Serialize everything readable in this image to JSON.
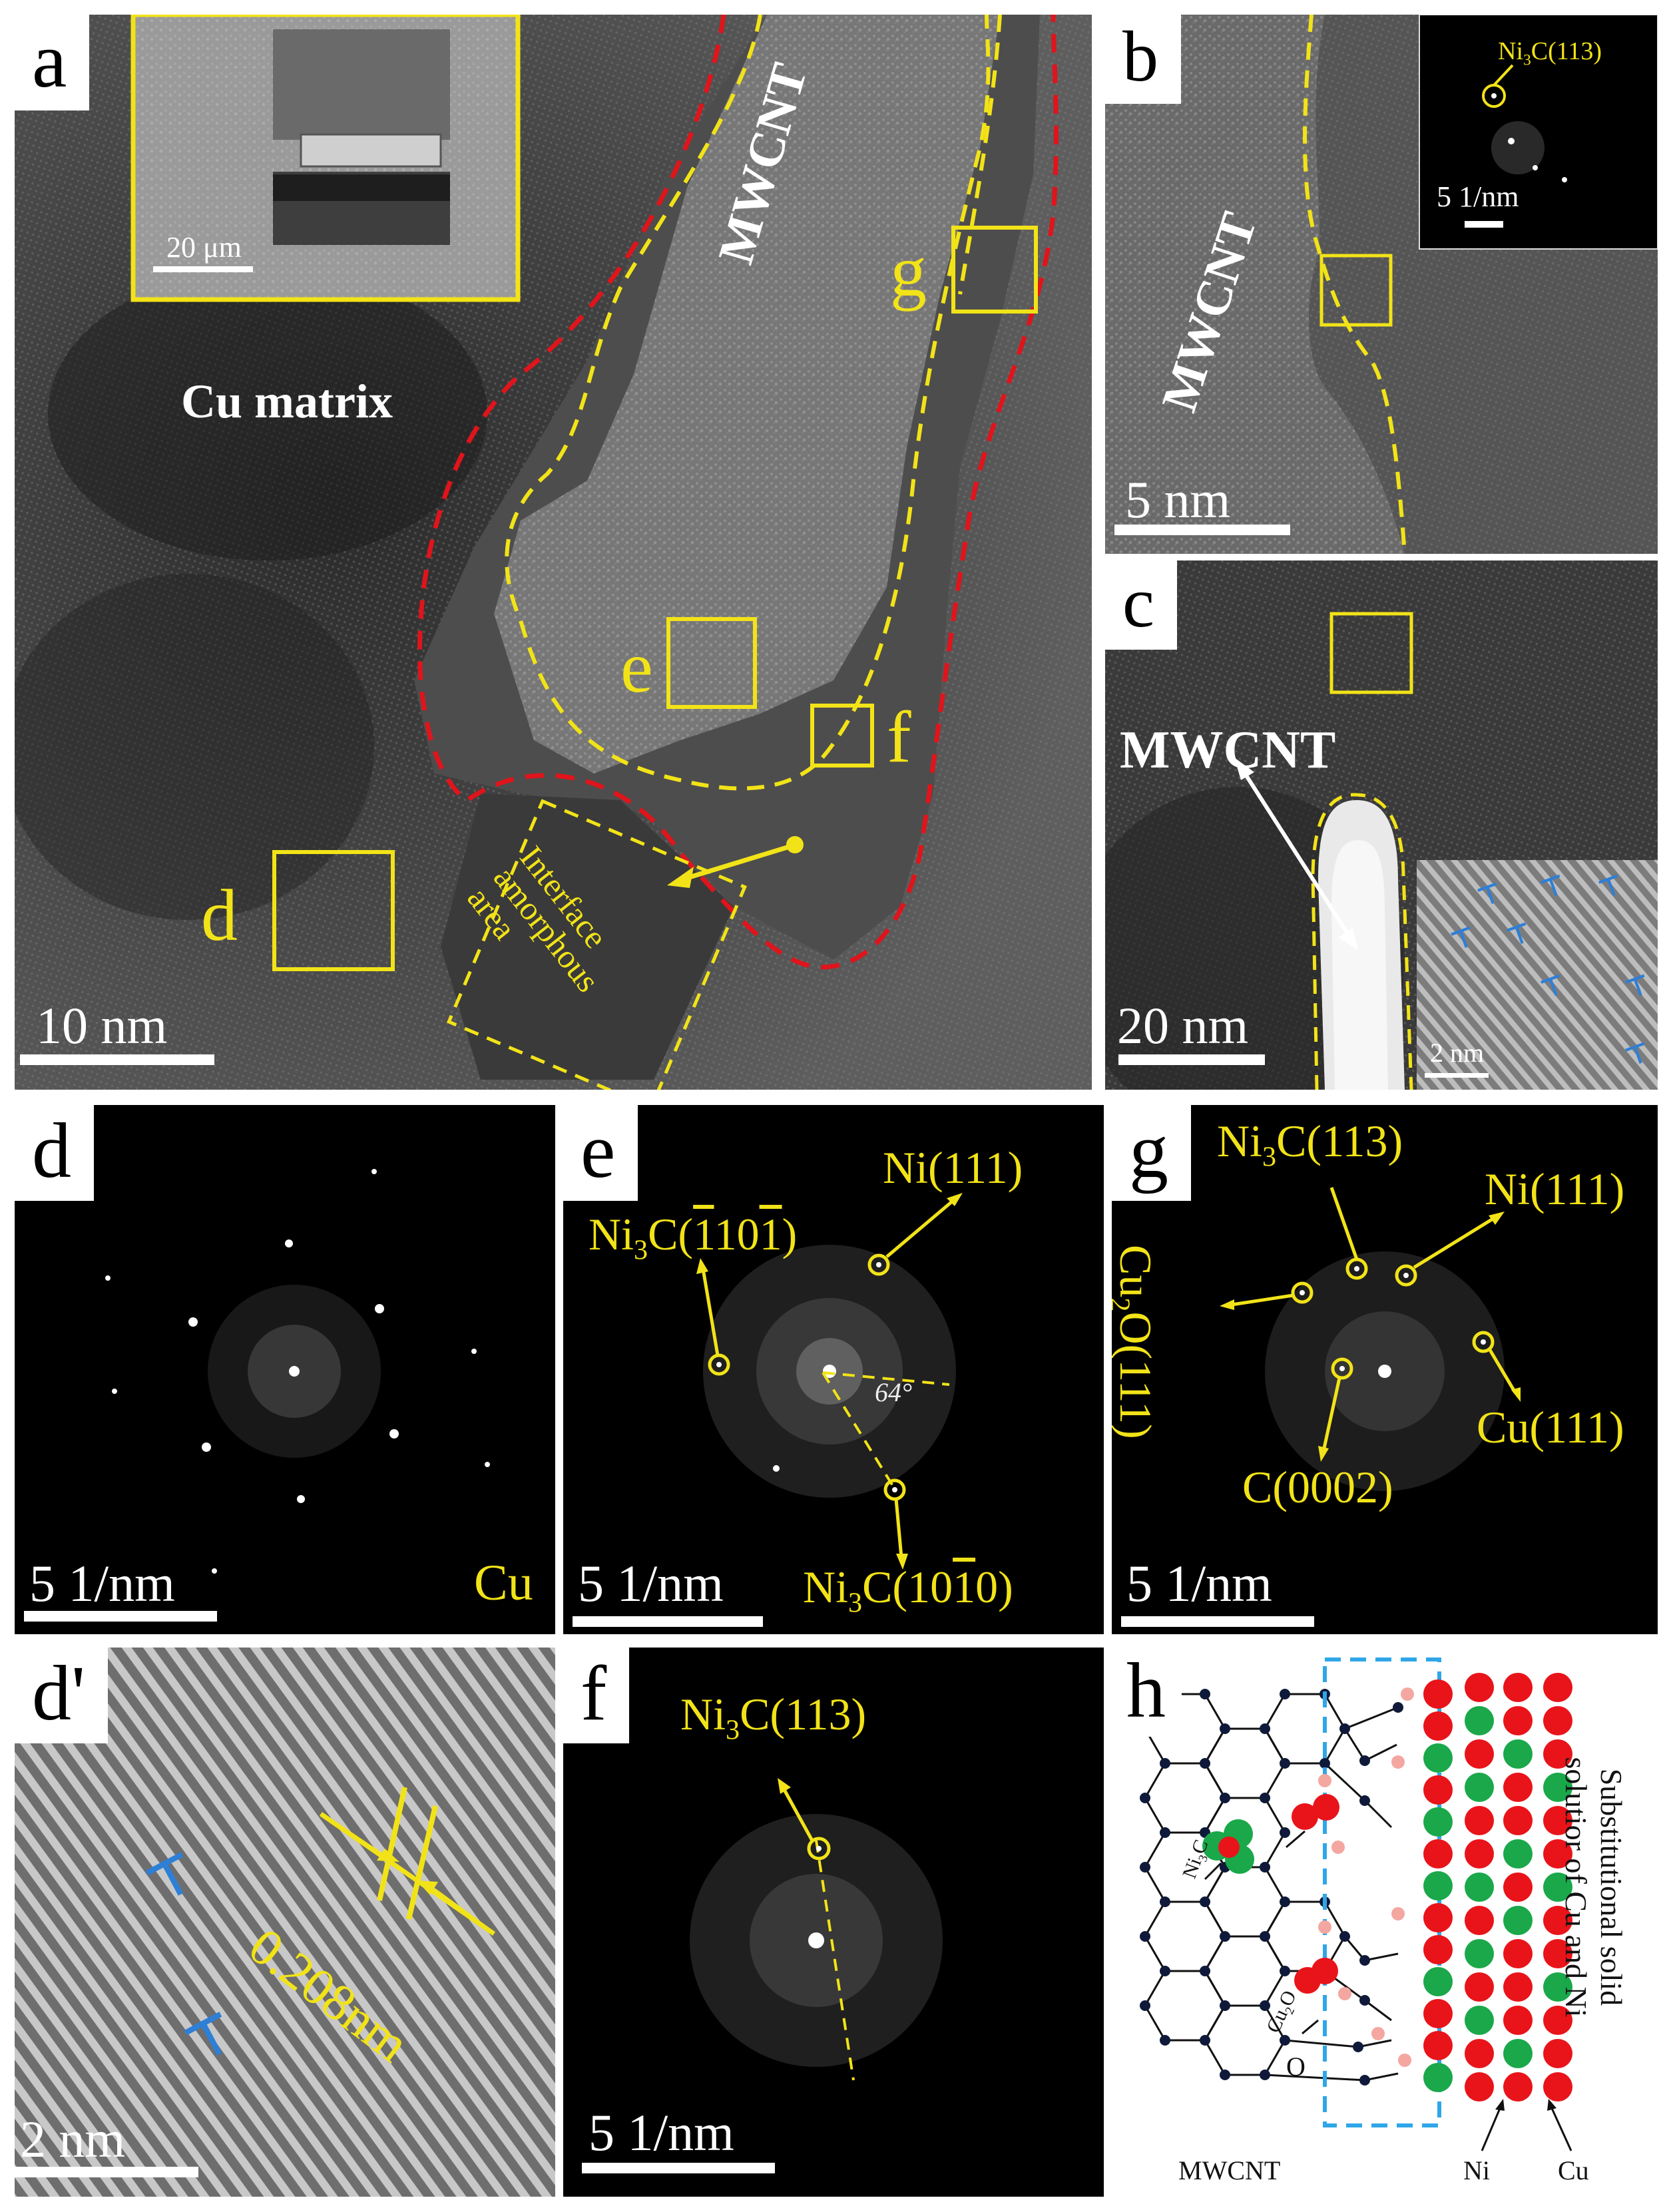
{
  "figure": {
    "panels": {
      "a": {
        "letter": "a",
        "scale": "10 nm",
        "inset_scale": "20 μm",
        "region_label": "Cu matrix",
        "tube_label": "MWCNT",
        "box_labels": [
          "d",
          "e",
          "f",
          "g"
        ],
        "interface_label": [
          "Interface",
          "amorphous",
          "area"
        ]
      },
      "b": {
        "letter": "b",
        "scale": "5 nm",
        "tube_label": "MWCNT",
        "fft_label": {
          "base": "Ni",
          "sub": "3",
          "rest": "C(113)"
        },
        "fft_scale": "5 1/nm"
      },
      "c": {
        "letter": "c",
        "scale": "20 nm",
        "tube_label": "MWCNT",
        "inset_scale": "2 nm"
      },
      "d": {
        "letter": "d",
        "scale": "5 1/nm",
        "element": "Cu"
      },
      "e": {
        "letter": "e",
        "scale": "5 1/nm",
        "angle": "64°",
        "labels": {
          "ni111": "Ni(111)",
          "ni3c_a": {
            "base": "Ni",
            "sub": "3",
            "pre": "C(",
            "bar1": "1",
            "mid": "10",
            "bar2": "1",
            "post": ")"
          },
          "ni3c_b": {
            "base": "Ni",
            "sub": "3",
            "pre": "C(10",
            "bar": "1",
            "post": "0)"
          }
        }
      },
      "f": {
        "letter": "f",
        "scale": "5 1/nm",
        "label": {
          "base": "Ni",
          "sub": "3",
          "rest": "C(113)"
        }
      },
      "g": {
        "letter": "g",
        "scale": "5 1/nm",
        "labels": {
          "ni3c": {
            "base": "Ni",
            "sub": "3",
            "rest": "C(113)"
          },
          "ni111": "Ni(111)",
          "cu2o": {
            "base": "Cu",
            "sub": "2",
            "rest": "O(111)"
          },
          "cu111": "Cu(111)",
          "c0002": "C(0002)"
        }
      },
      "dprime": {
        "letter": "d'",
        "scale": "2 nm",
        "spacing": "0.208nm"
      },
      "h": {
        "letter": "h",
        "caption": [
          "Substitutional solid",
          "solutior of Cu and Ni"
        ],
        "ni3c": {
          "base": "Ni",
          "sub": "3",
          "rest": "C"
        },
        "cu2o": {
          "base": "Cu",
          "sub": "2",
          "rest": "O"
        },
        "o_label": "O",
        "mwcnt": "MWCNT",
        "ni": "Ni",
        "cu": "Cu"
      }
    },
    "colors": {
      "yellow": "#f2e318",
      "red_dash": "#e0141b",
      "blue_dislocation": "#2e7fd6",
      "ni_green": "#1aa84a",
      "cu_red": "#e8141a",
      "o_pink": "#f4a7a0",
      "c_node": "#0f1a3a",
      "interface_box": "#2fa6e8"
    }
  }
}
